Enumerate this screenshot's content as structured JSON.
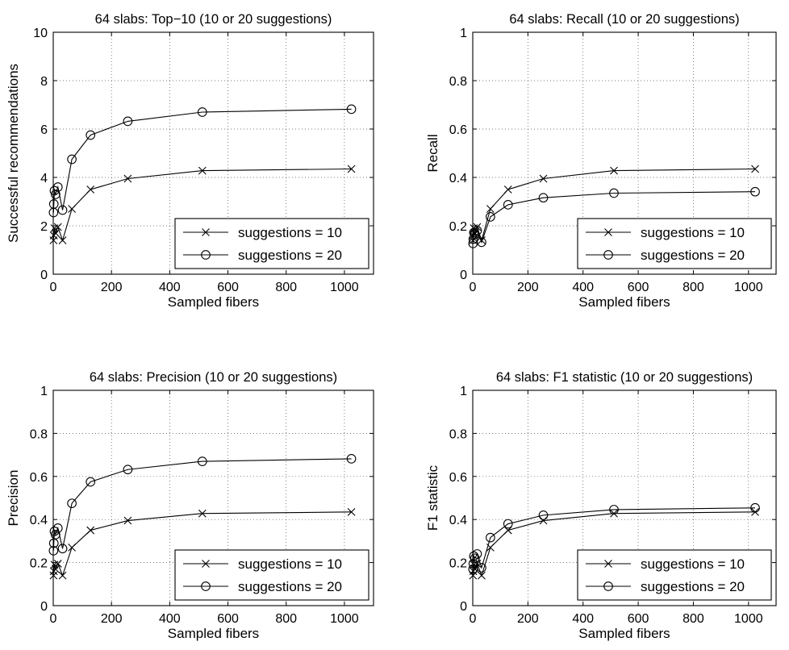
{
  "chart_data": [
    {
      "type": "line",
      "title": "64 slabs: Top−10 (10 or 20 suggestions)",
      "xlabel": "Sampled fibers",
      "ylabel": "Successful recommendations",
      "xlim": [
        0,
        1100
      ],
      "ylim": [
        0,
        10
      ],
      "xticks": [
        "0",
        "200",
        "400",
        "600",
        "800",
        "1000"
      ],
      "yticks": [
        "0",
        "2",
        "4",
        "6",
        "8",
        "10"
      ],
      "grid": true,
      "legend_position": "bottom-right",
      "series": [
        {
          "name": "suggestions = 10",
          "marker": "x",
          "x": [
            1,
            2,
            4,
            8,
            16,
            32,
            64,
            128,
            256,
            512,
            1024
          ],
          "y": [
            1.4,
            1.6,
            1.9,
            1.7,
            1.95,
            1.4,
            2.7,
            3.5,
            3.95,
            4.28,
            4.35
          ]
        },
        {
          "name": "suggestions = 20",
          "marker": "o",
          "x": [
            1,
            2,
            4,
            8,
            16,
            32,
            64,
            128,
            256,
            512,
            1024
          ],
          "y": [
            2.55,
            2.9,
            3.45,
            3.3,
            3.6,
            2.65,
            4.75,
            5.75,
            6.32,
            6.7,
            6.82
          ]
        }
      ]
    },
    {
      "type": "line",
      "title": "64 slabs: Recall (10 or 20 suggestions)",
      "xlabel": "Sampled fibers",
      "ylabel": "Recall",
      "xlim": [
        0,
        1100
      ],
      "ylim": [
        0,
        1
      ],
      "xticks": [
        "0",
        "200",
        "400",
        "600",
        "800",
        "1000"
      ],
      "yticks": [
        "0",
        "0.2",
        "0.4",
        "0.6",
        "0.8",
        "1"
      ],
      "grid": true,
      "legend_position": "bottom-right",
      "series": [
        {
          "name": "suggestions = 10",
          "marker": "x",
          "x": [
            1,
            2,
            4,
            8,
            16,
            32,
            64,
            128,
            256,
            512,
            1024
          ],
          "y": [
            0.14,
            0.16,
            0.19,
            0.17,
            0.195,
            0.14,
            0.27,
            0.35,
            0.395,
            0.428,
            0.435
          ]
        },
        {
          "name": "suggestions = 20",
          "marker": "o",
          "x": [
            1,
            2,
            4,
            8,
            16,
            32,
            64,
            128,
            256,
            512,
            1024
          ],
          "y": [
            0.127,
            0.145,
            0.172,
            0.165,
            0.18,
            0.132,
            0.237,
            0.287,
            0.316,
            0.335,
            0.341
          ]
        }
      ]
    },
    {
      "type": "line",
      "title": "64 slabs: Precision (10 or 20 suggestions)",
      "xlabel": "Sampled fibers",
      "ylabel": "Precision",
      "xlim": [
        0,
        1100
      ],
      "ylim": [
        0,
        1
      ],
      "xticks": [
        "0",
        "200",
        "400",
        "600",
        "800",
        "1000"
      ],
      "yticks": [
        "0",
        "0.2",
        "0.4",
        "0.6",
        "0.8",
        "1"
      ],
      "grid": true,
      "legend_position": "bottom-right",
      "series": [
        {
          "name": "suggestions = 10",
          "marker": "x",
          "x": [
            1,
            2,
            4,
            8,
            16,
            32,
            64,
            128,
            256,
            512,
            1024
          ],
          "y": [
            0.14,
            0.16,
            0.19,
            0.17,
            0.195,
            0.14,
            0.27,
            0.35,
            0.395,
            0.428,
            0.435
          ]
        },
        {
          "name": "suggestions = 20",
          "marker": "o",
          "x": [
            1,
            2,
            4,
            8,
            16,
            32,
            64,
            128,
            256,
            512,
            1024
          ],
          "y": [
            0.255,
            0.29,
            0.345,
            0.33,
            0.36,
            0.265,
            0.475,
            0.575,
            0.632,
            0.67,
            0.682
          ]
        }
      ]
    },
    {
      "type": "line",
      "title": "64 slabs: F1 statistic (10 or 20 suggestions)",
      "xlabel": "Sampled fibers",
      "ylabel": "F1 statistic",
      "xlim": [
        0,
        1100
      ],
      "ylim": [
        0,
        1
      ],
      "xticks": [
        "0",
        "200",
        "400",
        "600",
        "800",
        "1000"
      ],
      "yticks": [
        "0",
        "0.2",
        "0.4",
        "0.6",
        "0.8",
        "1"
      ],
      "grid": true,
      "legend_position": "bottom-right",
      "series": [
        {
          "name": "suggestions = 10",
          "marker": "x",
          "x": [
            1,
            2,
            4,
            8,
            16,
            32,
            64,
            128,
            256,
            512,
            1024
          ],
          "y": [
            0.14,
            0.16,
            0.19,
            0.17,
            0.195,
            0.14,
            0.27,
            0.35,
            0.395,
            0.428,
            0.435
          ]
        },
        {
          "name": "suggestions = 20",
          "marker": "o",
          "x": [
            1,
            2,
            4,
            8,
            16,
            32,
            64,
            128,
            256,
            512,
            1024
          ],
          "y": [
            0.17,
            0.195,
            0.23,
            0.22,
            0.24,
            0.176,
            0.316,
            0.38,
            0.42,
            0.446,
            0.454
          ]
        }
      ]
    }
  ]
}
